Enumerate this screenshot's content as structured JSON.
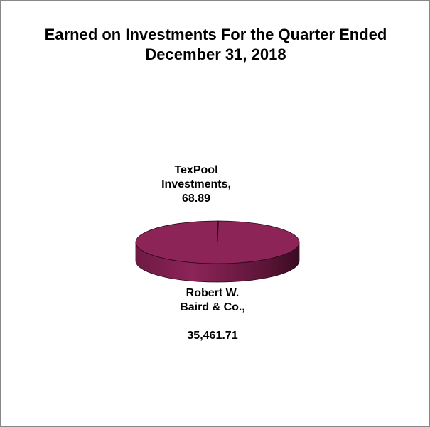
{
  "chart_data": {
    "type": "pie",
    "title": "Earned on Investments For the Quarter Ended December 31, 2018",
    "categories": [
      "TexPool Investments,",
      "Robert W. Baird & Co.,"
    ],
    "values": [
      68.89,
      35461.71
    ],
    "value_labels": [
      "68.89",
      "35,461.71"
    ],
    "color": "#8c2458"
  }
}
